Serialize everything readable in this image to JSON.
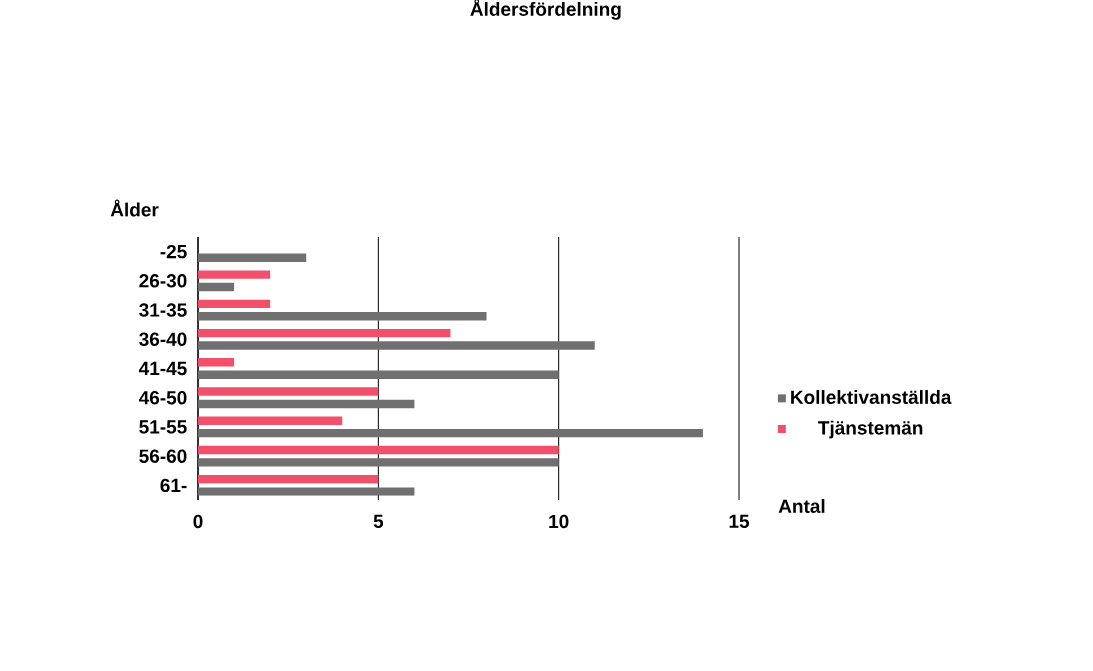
{
  "chart_data": {
    "type": "bar",
    "orientation": "horizontal",
    "title": "Åldersfördelning",
    "xlabel": "Antal",
    "ylabel": "Ålder",
    "categories": [
      "-25",
      "26-30",
      "31-35",
      "36-40",
      "41-45",
      "46-50",
      "51-55",
      "56-60",
      "61-"
    ],
    "series": [
      {
        "name": "Kollektivanställda",
        "color": "#707070",
        "values": [
          3,
          1,
          8,
          11,
          10,
          6,
          14,
          10,
          6
        ]
      },
      {
        "name": "Tjänstemän",
        "color": "#f0506a",
        "values": [
          null,
          2,
          2,
          7,
          1,
          5,
          4,
          10,
          5
        ]
      }
    ],
    "xlim": [
      0,
      15
    ],
    "xticks": [
      0,
      5,
      10,
      15
    ],
    "grid": "x",
    "legend": "right"
  }
}
